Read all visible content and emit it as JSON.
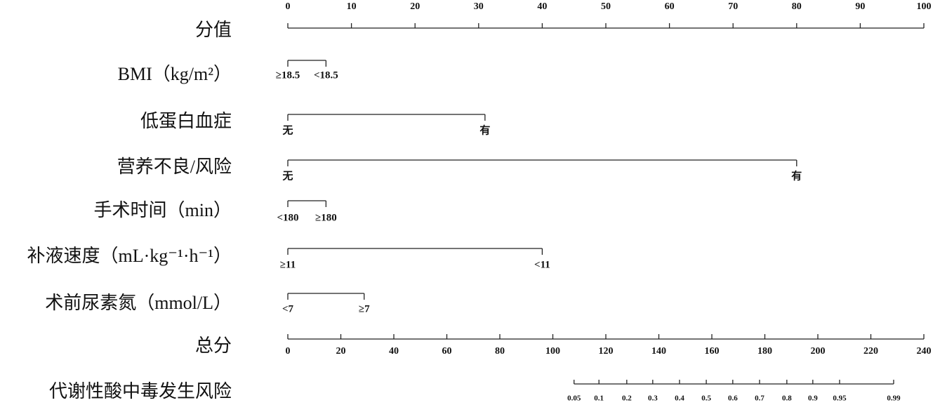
{
  "chart_data": {
    "type": "nomogram",
    "points_axis": {
      "label": "分值",
      "xlim": [
        0,
        100
      ],
      "xticks": [
        0,
        10,
        20,
        30,
        40,
        50,
        60,
        70,
        80,
        90,
        100
      ]
    },
    "variables": [
      {
        "label": "BMI（kg/m²）",
        "levels": [
          {
            "label": "≥18.5",
            "points": 0
          },
          {
            "label": "<18.5",
            "points": 6
          }
        ]
      },
      {
        "label": "低蛋白血症",
        "levels": [
          {
            "label": "无",
            "points": 0
          },
          {
            "label": "有",
            "points": 31
          }
        ]
      },
      {
        "label": "营养不良/风险",
        "levels": [
          {
            "label": "无",
            "points": 0
          },
          {
            "label": "有",
            "points": 80
          }
        ]
      },
      {
        "label": "手术时间（min）",
        "levels": [
          {
            "label": "<180",
            "points": 0
          },
          {
            "label": "≥180",
            "points": 6
          }
        ]
      },
      {
        "label": "补液速度（mL·kg⁻¹·h⁻¹）",
        "levels": [
          {
            "label": "≥11",
            "points": 0
          },
          {
            "label": "<11",
            "points": 40
          }
        ]
      },
      {
        "label": "术前尿素氮（mmol/L）",
        "levels": [
          {
            "label": "<7",
            "points": 0
          },
          {
            "label": "≥7",
            "points": 12
          }
        ]
      }
    ],
    "total_axis": {
      "label": "总分",
      "xlim": [
        0,
        240
      ],
      "xticks": [
        0,
        20,
        40,
        60,
        80,
        100,
        120,
        140,
        160,
        180,
        200,
        220,
        240
      ]
    },
    "risk_axis": {
      "label": "代谢性酸中毒发生风险",
      "ticks": [
        {
          "value": 0.05,
          "total_points": 108
        },
        {
          "value": 0.1,
          "total_points": 117.4
        },
        {
          "value": 0.2,
          "total_points": 127.9
        },
        {
          "value": 0.3,
          "total_points": 137.7
        },
        {
          "value": 0.4,
          "total_points": 147.8
        },
        {
          "value": 0.5,
          "total_points": 157.9
        },
        {
          "value": 0.6,
          "total_points": 167.9
        },
        {
          "value": 0.7,
          "total_points": 178
        },
        {
          "value": 0.8,
          "total_points": 188.3
        },
        {
          "value": 0.9,
          "total_points": 198.1
        },
        {
          "value": 0.95,
          "total_points": 208.2
        },
        {
          "value": 0.99,
          "total_points": 228.6
        }
      ]
    }
  }
}
